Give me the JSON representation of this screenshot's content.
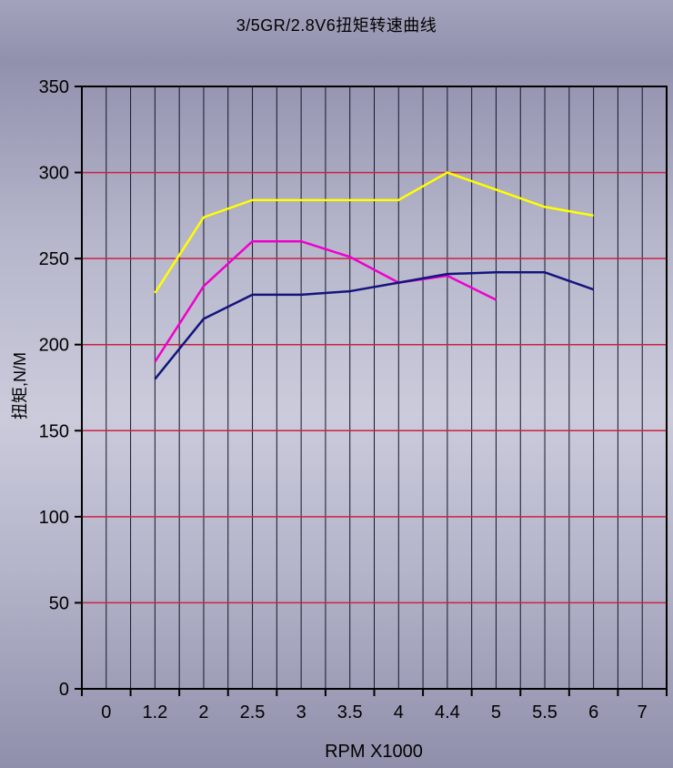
{
  "chart_data": {
    "type": "line",
    "title": "3/5GR/2.8V6扭矩转速曲线",
    "xlabel": "RPM X1000",
    "ylabel": "扭矩,N/M",
    "categories": [
      "0",
      "1.2",
      "2",
      "2.5",
      "3",
      "3.5",
      "4",
      "4.4",
      "5",
      "5.5",
      "6",
      "7"
    ],
    "ylim": [
      0,
      350
    ],
    "ytick_step": 50,
    "legend": "none",
    "grid": {
      "horizontal_color": "#cc2244",
      "vertical_color": "#15152a",
      "axis_color": "#000000"
    },
    "series": [
      {
        "name": "torque-curve-yellow",
        "color": "#ffff00",
        "points": [
          [
            "1.2",
            230
          ],
          [
            "2",
            274
          ],
          [
            "2.5",
            284
          ],
          [
            "3",
            284
          ],
          [
            "3.5",
            284
          ],
          [
            "4",
            284
          ],
          [
            "4.4",
            300
          ],
          [
            "5",
            290
          ],
          [
            "5.5",
            280
          ],
          [
            "6",
            275
          ]
        ]
      },
      {
        "name": "torque-curve-magenta",
        "color": "#ee00cc",
        "points": [
          [
            "1.2",
            190
          ],
          [
            "2",
            234
          ],
          [
            "2.5",
            260
          ],
          [
            "3",
            260
          ],
          [
            "3.5",
            251
          ],
          [
            "4",
            236
          ],
          [
            "4.4",
            240
          ],
          [
            "5",
            226
          ]
        ]
      },
      {
        "name": "torque-curve-navy",
        "color": "#14147e",
        "points": [
          [
            "1.2",
            180
          ],
          [
            "2",
            215
          ],
          [
            "2.5",
            229
          ],
          [
            "3",
            229
          ],
          [
            "3.5",
            231
          ],
          [
            "4",
            236
          ],
          [
            "4.4",
            241
          ],
          [
            "5",
            242
          ],
          [
            "5.5",
            242
          ],
          [
            "6",
            232
          ]
        ]
      }
    ]
  }
}
